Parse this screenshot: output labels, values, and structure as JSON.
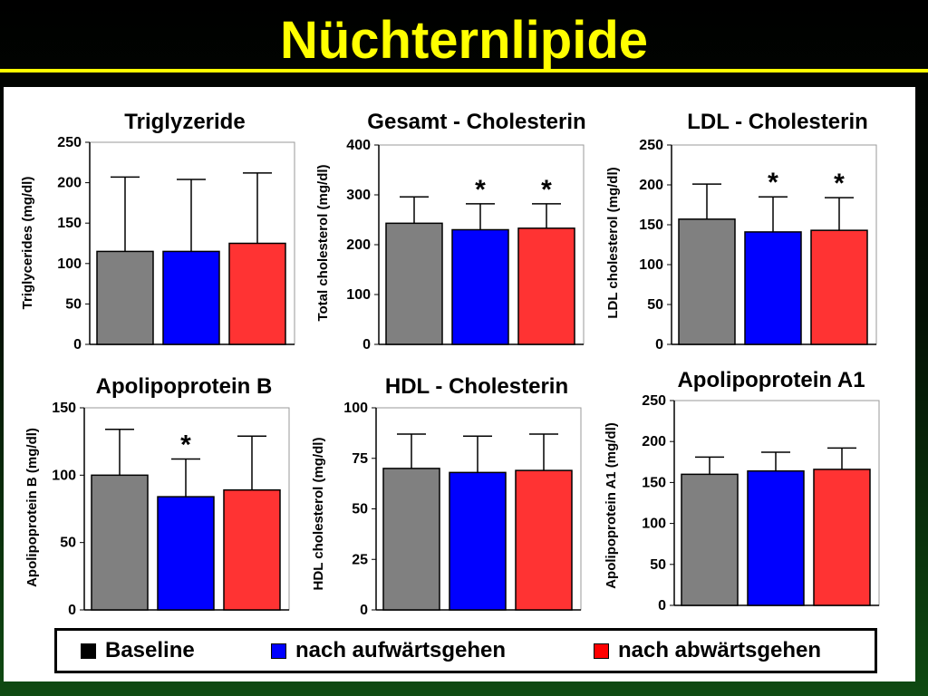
{
  "slide": {
    "title": "Nüchternlipide"
  },
  "legend": {
    "items": [
      {
        "label": "Baseline",
        "color": "#000000"
      },
      {
        "label": "nach aufwärtsgehen",
        "color": "#0000ff"
      },
      {
        "label": "nach abwärtsgehen",
        "color": "#ff0000"
      }
    ]
  },
  "colors": {
    "bars": [
      "#808080",
      "#0000ff",
      "#ff3333"
    ]
  },
  "chart_data": [
    {
      "type": "bar",
      "title": "Triglyzeride",
      "ylabel": "Triglycerides (mg/dl)",
      "ylim": [
        0,
        250
      ],
      "yticks": [
        0,
        50,
        100,
        150,
        200,
        250
      ],
      "series": [
        {
          "values": [
            115,
            115,
            125
          ],
          "errors": [
            92,
            89,
            87
          ]
        }
      ],
      "significance": []
    },
    {
      "type": "bar",
      "title": "Gesamt - Cholesterin",
      "ylabel": "Total cholesterol (mg/dl)",
      "ylim": [
        0,
        400
      ],
      "yticks": [
        0,
        100,
        200,
        300,
        400
      ],
      "series": [
        {
          "values": [
            243,
            230,
            233
          ],
          "errors": [
            53,
            52,
            49
          ]
        }
      ],
      "significance": [
        "",
        "*",
        "*"
      ]
    },
    {
      "type": "bar",
      "title": "LDL - Cholesterin",
      "ylabel": "LDL cholesterol (mg/dl)",
      "ylim": [
        0,
        250
      ],
      "yticks": [
        0,
        50,
        100,
        150,
        200,
        250
      ],
      "series": [
        {
          "values": [
            157,
            141,
            143
          ],
          "errors": [
            44,
            44,
            41
          ]
        }
      ],
      "significance": [
        "",
        "*",
        "*"
      ]
    },
    {
      "type": "bar",
      "title": "Apolipoprotein B",
      "ylabel": "Apolipoprotein B (mg/dl)",
      "ylim": [
        0,
        150
      ],
      "yticks": [
        0,
        50,
        100,
        150
      ],
      "series": [
        {
          "values": [
            100,
            84,
            89
          ],
          "errors": [
            34,
            28,
            40
          ]
        }
      ],
      "significance": [
        "",
        "*",
        ""
      ]
    },
    {
      "type": "bar",
      "title": "HDL - Cholesterin",
      "ylabel": "HDL cholesterol (mg/dl)",
      "ylim": [
        0,
        100
      ],
      "yticks": [
        0,
        25,
        50,
        75,
        100
      ],
      "series": [
        {
          "values": [
            70,
            68,
            69
          ],
          "errors": [
            17,
            18,
            18
          ]
        }
      ],
      "significance": []
    },
    {
      "type": "bar",
      "title": "Apolipoprotein A1",
      "ylabel": "Apolipoprotein A1 (mg/dl)",
      "ylim": [
        0,
        250
      ],
      "yticks": [
        0,
        50,
        100,
        150,
        200,
        250
      ],
      "series": [
        {
          "values": [
            160,
            164,
            166
          ],
          "errors": [
            21,
            23,
            26
          ]
        }
      ],
      "significance": []
    }
  ]
}
